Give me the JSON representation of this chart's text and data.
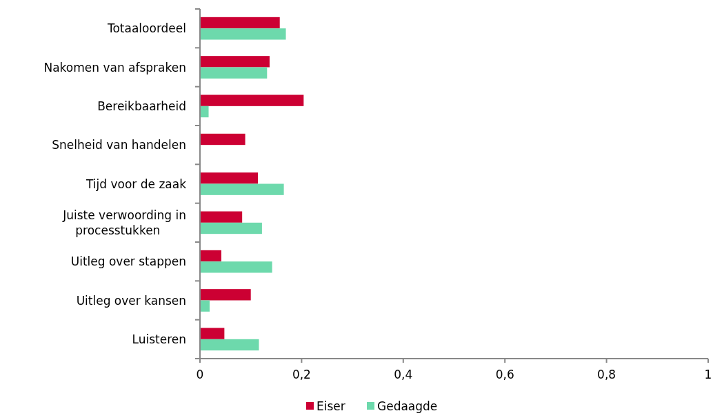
{
  "chart_data": {
    "type": "bar",
    "orientation": "horizontal",
    "categories": [
      "Totaaloordeel",
      "Nakomen van afspraken",
      "Bereikbaarheid",
      "Snelheid van handelen",
      "Tijd voor de zaak",
      "Juiste verwoording in processtukken",
      "Uitleg over stappen",
      "Uitleg over kansen",
      "Luisteren"
    ],
    "series": [
      {
        "name": "Eiser",
        "color": "#cc0033",
        "values": [
          0.157,
          0.137,
          0.204,
          0.089,
          0.114,
          0.083,
          0.042,
          0.1,
          0.048
        ]
      },
      {
        "name": "Gedaagde",
        "color": "#6dd9ac",
        "values": [
          0.169,
          0.132,
          0.017,
          null,
          0.165,
          0.122,
          0.142,
          0.019,
          0.116
        ]
      }
    ],
    "xlim": [
      0,
      1
    ],
    "xticks": [
      {
        "value": 0,
        "label": "0"
      },
      {
        "value": 0.2,
        "label": "0,2"
      },
      {
        "value": 0.4,
        "label": "0,4"
      },
      {
        "value": 0.6,
        "label": "0,6"
      },
      {
        "value": 0.8,
        "label": "0,8"
      },
      {
        "value": 1,
        "label": "1"
      }
    ],
    "grid": false,
    "legend": "bottom"
  }
}
